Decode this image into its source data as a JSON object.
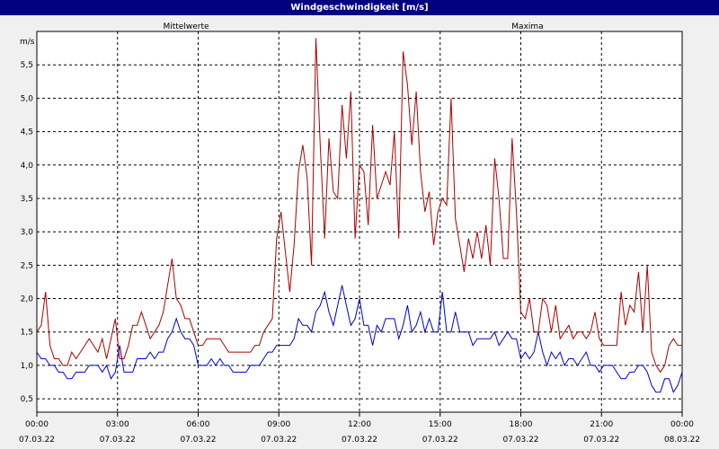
{
  "title": "Windgeschwindigkeit [m/s]",
  "chart_data": {
    "type": "line",
    "title": "Windgeschwindigkeit [m/s]",
    "ylabel": "m/s",
    "ylim": [
      0.3,
      6.0
    ],
    "xlim": [
      0,
      24
    ],
    "grid": true,
    "yticks": [
      "0,5",
      "1,0",
      "1,5",
      "2,0",
      "2,5",
      "3,0",
      "3,5",
      "4,0",
      "4,5",
      "5,0",
      "5,5"
    ],
    "yticks_values": [
      0.5,
      1.0,
      1.5,
      2.0,
      2.5,
      3.0,
      3.5,
      4.0,
      4.5,
      5.0,
      5.5
    ],
    "xticks": [
      {
        "time": "00:00",
        "date": "07.03.22",
        "h": 0
      },
      {
        "time": "03:00",
        "date": "07.03.22",
        "h": 3
      },
      {
        "time": "06:00",
        "date": "07.03.22",
        "h": 6
      },
      {
        "time": "09:00",
        "date": "07.03.22",
        "h": 9
      },
      {
        "time": "12:00",
        "date": "07.03.22",
        "h": 12
      },
      {
        "time": "15:00",
        "date": "07.03.22",
        "h": 15
      },
      {
        "time": "18:00",
        "date": "07.03.22",
        "h": 18
      },
      {
        "time": "21:00",
        "date": "07.03.22",
        "h": 21
      },
      {
        "time": "00:00",
        "date": "08.03.22",
        "h": 24
      }
    ],
    "series": [
      {
        "name": "Mittelwerte",
        "color": "#0000cc",
        "values": [
          1.2,
          1.1,
          1.1,
          1.0,
          1.0,
          0.9,
          0.9,
          0.8,
          0.8,
          0.9,
          0.9,
          0.9,
          1.0,
          1.0,
          1.0,
          0.9,
          1.0,
          0.8,
          0.9,
          1.3,
          0.9,
          0.9,
          0.9,
          1.1,
          1.1,
          1.1,
          1.2,
          1.1,
          1.2,
          1.2,
          1.4,
          1.5,
          1.7,
          1.5,
          1.4,
          1.4,
          1.3,
          1.0,
          1.0,
          1.0,
          1.1,
          1.0,
          1.1,
          1.0,
          1.0,
          0.9,
          0.9,
          0.9,
          0.9,
          1.0,
          1.0,
          1.0,
          1.1,
          1.2,
          1.2,
          1.3,
          1.3,
          1.3,
          1.3,
          1.4,
          1.7,
          1.6,
          1.6,
          1.5,
          1.8,
          1.9,
          2.1,
          1.8,
          1.6,
          1.9,
          2.2,
          1.9,
          1.6,
          1.7,
          2.0,
          1.6,
          1.6,
          1.3,
          1.6,
          1.5,
          1.7,
          1.7,
          1.7,
          1.4,
          1.6,
          1.9,
          1.5,
          1.6,
          1.8,
          1.5,
          1.7,
          1.5,
          1.5,
          2.1,
          1.5,
          1.5,
          1.8,
          1.5,
          1.5,
          1.5,
          1.3,
          1.4,
          1.4,
          1.4,
          1.4,
          1.5,
          1.3,
          1.4,
          1.5,
          1.4,
          1.4,
          1.1,
          1.2,
          1.1,
          1.2,
          1.5,
          1.2,
          1.0,
          1.2,
          1.1,
          1.2,
          1.0,
          1.1,
          1.1,
          1.0,
          1.1,
          1.2,
          1.0,
          1.0,
          0.9,
          1.0,
          1.0,
          1.0,
          0.9,
          0.8,
          0.8,
          0.9,
          0.9,
          1.0,
          1.0,
          0.9,
          0.7,
          0.6,
          0.6,
          0.8,
          0.8,
          0.6,
          0.7,
          0.9
        ]
      },
      {
        "name": "Maxima",
        "color": "#aa0000",
        "values": [
          1.5,
          1.6,
          2.1,
          1.3,
          1.1,
          1.1,
          1.0,
          1.0,
          1.2,
          1.1,
          1.2,
          1.3,
          1.4,
          1.3,
          1.2,
          1.4,
          1.1,
          1.4,
          1.7,
          1.1,
          1.1,
          1.3,
          1.6,
          1.6,
          1.8,
          1.6,
          1.4,
          1.5,
          1.6,
          1.8,
          2.2,
          2.6,
          2.0,
          1.9,
          1.7,
          1.7,
          1.5,
          1.3,
          1.3,
          1.4,
          1.4,
          1.4,
          1.4,
          1.3,
          1.2,
          1.2,
          1.2,
          1.2,
          1.2,
          1.2,
          1.3,
          1.3,
          1.5,
          1.6,
          1.7,
          2.9,
          3.3,
          2.7,
          2.1,
          2.8,
          3.9,
          4.3,
          3.8,
          2.5,
          5.9,
          4.3,
          2.9,
          4.4,
          3.6,
          3.5,
          4.9,
          4.1,
          5.1,
          2.9,
          4.0,
          3.9,
          3.1,
          4.6,
          3.5,
          3.7,
          3.9,
          3.7,
          4.5,
          2.9,
          5.7,
          5.2,
          4.3,
          5.1,
          3.9,
          3.3,
          3.6,
          2.8,
          3.3,
          3.5,
          3.4,
          5.0,
          3.2,
          2.8,
          2.4,
          2.9,
          2.6,
          3.0,
          2.6,
          3.1,
          2.5,
          4.1,
          3.5,
          2.6,
          2.6,
          4.4,
          3.3,
          1.8,
          1.7,
          2.0,
          1.5,
          1.5,
          2.0,
          1.9,
          1.5,
          1.9,
          1.4,
          1.5,
          1.6,
          1.4,
          1.5,
          1.5,
          1.4,
          1.5,
          1.8,
          1.4,
          1.3,
          1.3,
          1.3,
          1.3,
          2.1,
          1.6,
          1.9,
          1.8,
          2.4,
          1.5,
          2.5,
          1.2,
          1.0,
          0.9,
          1.0,
          1.3,
          1.4,
          1.3,
          1.3
        ]
      }
    ]
  }
}
